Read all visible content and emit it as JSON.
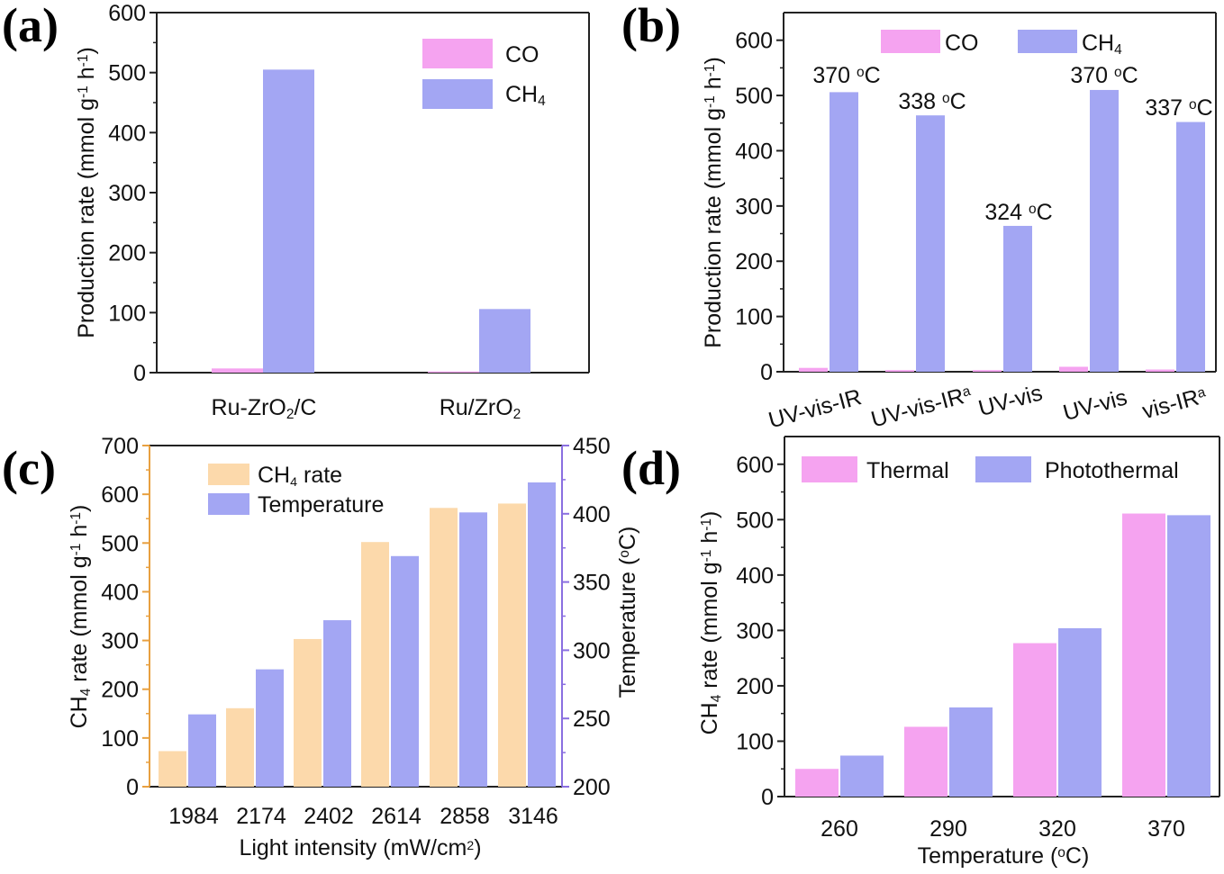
{
  "colors": {
    "co": "#f5a3f0",
    "ch4": "#a3a6f3",
    "thermal": "#f5a3f0",
    "photothermal": "#a3a6f3",
    "ch4_rate": "#fcd9ab",
    "temperature": "#a3a6f3",
    "orange_axis": "#e8a040",
    "purple_axis": "#8a6fe0"
  },
  "chart_data": [
    {
      "panel": "(a)",
      "type": "bar",
      "categories": [
        "Ru-ZrO2/C",
        "Ru/ZrO2"
      ],
      "series": [
        {
          "name": "CO",
          "values": [
            7,
            2
          ]
        },
        {
          "name": "CH4",
          "values": [
            505,
            106
          ]
        }
      ],
      "ylabel": "Production rate (mmol g-1 h-1)",
      "ylim": [
        0,
        600
      ],
      "yticks": [
        "0",
        "100",
        "200",
        "300",
        "400",
        "500",
        "600"
      ],
      "legend": "top-right"
    },
    {
      "panel": "(b)",
      "type": "bar",
      "categories": [
        "UV-vis-IR",
        "UV-vis-IRa",
        "UV-vis",
        "UV-vis",
        "vis-IRa"
      ],
      "series": [
        {
          "name": "CO",
          "values": [
            7,
            3,
            3,
            9,
            4
          ]
        },
        {
          "name": "CH4",
          "values": [
            506,
            464,
            264,
            510,
            452
          ]
        }
      ],
      "annotations": [
        "370 oC",
        "338 oC",
        "324 oC",
        "370 oC",
        "337 oC"
      ],
      "ylabel": "Production rate (mmol g-1 h-1)",
      "ylim": [
        0,
        650
      ],
      "yticks": [
        "0",
        "100",
        "200",
        "300",
        "400",
        "500",
        "600"
      ],
      "legend": "top"
    },
    {
      "panel": "(c)",
      "type": "bar",
      "categories": [
        "1984",
        "2174",
        "2402",
        "2614",
        "2858",
        "3146"
      ],
      "series": [
        {
          "name": "CH4 rate",
          "axis": "left",
          "values": [
            73,
            161,
            303,
            502,
            572,
            581
          ]
        },
        {
          "name": "Temperature",
          "axis": "right",
          "values": [
            253,
            286,
            322,
            369,
            401,
            423
          ]
        }
      ],
      "xlabel": "Light intensity (mW/cm2)",
      "ylabel": "CH4 rate (mmol g-1 h-1)",
      "ylabel_right": "Temperature (oC)",
      "ylim": [
        0,
        700
      ],
      "ylim_right": [
        200,
        450
      ],
      "yticks": [
        "0",
        "100",
        "200",
        "300",
        "400",
        "500",
        "600",
        "700"
      ],
      "yticks_right": [
        "200",
        "250",
        "300",
        "350",
        "400",
        "450"
      ],
      "legend": "top-left"
    },
    {
      "panel": "(d)",
      "type": "bar",
      "categories": [
        "260",
        "290",
        "320",
        "370"
      ],
      "series": [
        {
          "name": "Thermal",
          "values": [
            50,
            126,
            277,
            511
          ]
        },
        {
          "name": "Photothermal",
          "values": [
            74,
            161,
            304,
            508
          ]
        }
      ],
      "xlabel": "Temperature (oC)",
      "ylabel": "CH4 rate (mmol g-1 h-1)",
      "ylim": [
        0,
        650
      ],
      "yticks": [
        "0",
        "100",
        "200",
        "300",
        "400",
        "500",
        "600"
      ],
      "legend": "top"
    }
  ]
}
